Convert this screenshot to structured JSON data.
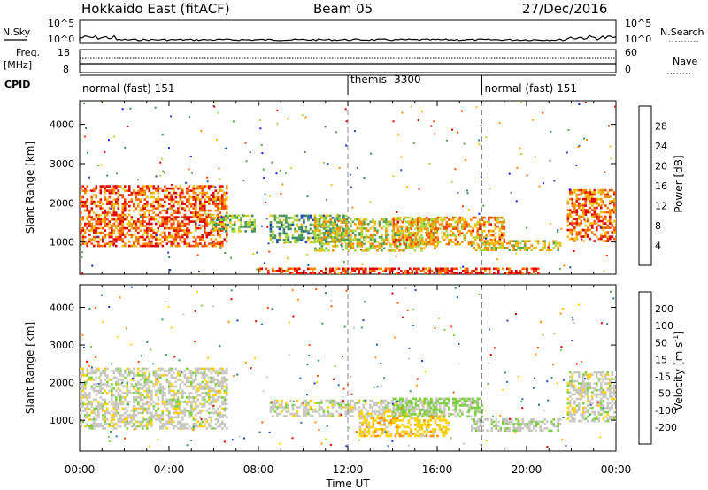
{
  "header": {
    "station": "Hokkaido East (fitACF)",
    "beam": "Beam 05",
    "date": "27/Dec/2016"
  },
  "top_panels": {
    "nsky_label": "N.Sky",
    "nsky_ticks_left": [
      "10^5",
      "10^0"
    ],
    "nsearch_label": "N.Search",
    "nsearch_ticks_right": [
      "10^5",
      "10^0"
    ],
    "freq_label_1": "Freq.",
    "freq_label_2": "[MHz]",
    "freq_ticks": [
      "18",
      "8"
    ],
    "nave_label": "Nave",
    "nave_ticks": [
      "60",
      "0"
    ],
    "cpid_label": "CPID",
    "cpid_segments": [
      {
        "label": "normal (fast) 151",
        "start_h": 0,
        "end_h": 12
      },
      {
        "label": "themis -3300",
        "start_h": 12,
        "end_h": 18
      },
      {
        "label": "normal (fast) 151",
        "start_h": 18,
        "end_h": 24
      }
    ]
  },
  "colors": {
    "power_scale": [
      "#1a1aff",
      "#1f4fa8",
      "#3a8a6a",
      "#5aa050",
      "#a8d840",
      "#f2c010",
      "#ff8c00",
      "#ff4a00",
      "#e00000"
    ],
    "velocity_scale": [
      "#1f3fbf",
      "#2f6faa",
      "#3a9a5a",
      "#7fd040",
      "#c8c8c0",
      "#ffd000",
      "#ff9000",
      "#ff5000",
      "#e00000"
    ]
  },
  "chart_data": [
    {
      "type": "heatmap",
      "title": "Power",
      "xlabel": "",
      "ylabel": "Slant Range [km]",
      "xlim": [
        0,
        24
      ],
      "ylim": [
        180,
        4600
      ],
      "y_ticks": [
        "1000",
        "2000",
        "3000",
        "4000"
      ],
      "y_tick_values": [
        1000,
        2000,
        3000,
        4000
      ],
      "colorbar_label": "Power [dB]",
      "colorbar_ticks": [
        "4",
        "8",
        "12",
        "16",
        "20",
        "24",
        "28"
      ],
      "colorbar_range": [
        0,
        32
      ],
      "echo_regions": [
        {
          "t0": 0.0,
          "t1": 6.6,
          "r0": 900,
          "r1": 2450,
          "value": 26
        },
        {
          "t0": 5.8,
          "t1": 7.8,
          "r0": 1300,
          "r1": 1700,
          "value": 14
        },
        {
          "t0": 8.5,
          "t1": 12.0,
          "r0": 1000,
          "r1": 1700,
          "value": 12
        },
        {
          "t0": 10.5,
          "t1": 16.0,
          "r0": 800,
          "r1": 1600,
          "value": 18
        },
        {
          "t0": 14.0,
          "t1": 19.0,
          "r0": 950,
          "r1": 1650,
          "value": 22
        },
        {
          "t0": 17.5,
          "t1": 21.5,
          "r0": 800,
          "r1": 1050,
          "value": 18
        },
        {
          "t0": 21.8,
          "t1": 24.0,
          "r0": 1050,
          "r1": 2350,
          "value": 25
        },
        {
          "t0": 8.0,
          "t1": 20.5,
          "r0": 180,
          "r1": 350,
          "value": 28
        }
      ]
    },
    {
      "type": "heatmap",
      "title": "Velocity",
      "xlabel": "Time UT",
      "ylabel": "Slant Range [km]",
      "xlim": [
        0,
        24
      ],
      "ylim": [
        180,
        4600
      ],
      "x_ticks": [
        "00:00",
        "04:00",
        "08:00",
        "12:00",
        "16:00",
        "20:00",
        "00:00"
      ],
      "x_tick_values": [
        0,
        4,
        8,
        12,
        16,
        20,
        24
      ],
      "y_ticks": [
        "1000",
        "2000",
        "3000",
        "4000"
      ],
      "y_tick_values": [
        1000,
        2000,
        3000,
        4000
      ],
      "colorbar_label": "Velocity [m s",
      "colorbar_label_sup": "-1",
      "colorbar_label_end": "]",
      "colorbar_ticks": [
        "200",
        "100",
        "50",
        "15",
        "-15",
        "-50",
        "-100",
        "-200"
      ],
      "echo_regions": [
        {
          "t0": 0.0,
          "t1": 6.6,
          "r0": 800,
          "r1": 2400,
          "value": 0
        },
        {
          "t0": 8.5,
          "t1": 16.0,
          "r0": 1100,
          "r1": 1550,
          "value": 0
        },
        {
          "t0": 12.5,
          "t1": 16.5,
          "r0": 600,
          "r1": 1200,
          "value": -60
        },
        {
          "t0": 14.0,
          "t1": 18.0,
          "r0": 1100,
          "r1": 1600,
          "value": 40
        },
        {
          "t0": 17.5,
          "t1": 21.5,
          "r0": 700,
          "r1": 1050,
          "value": 10
        },
        {
          "t0": 21.8,
          "t1": 24.0,
          "r0": 1000,
          "r1": 2300,
          "value": 0
        }
      ]
    }
  ]
}
